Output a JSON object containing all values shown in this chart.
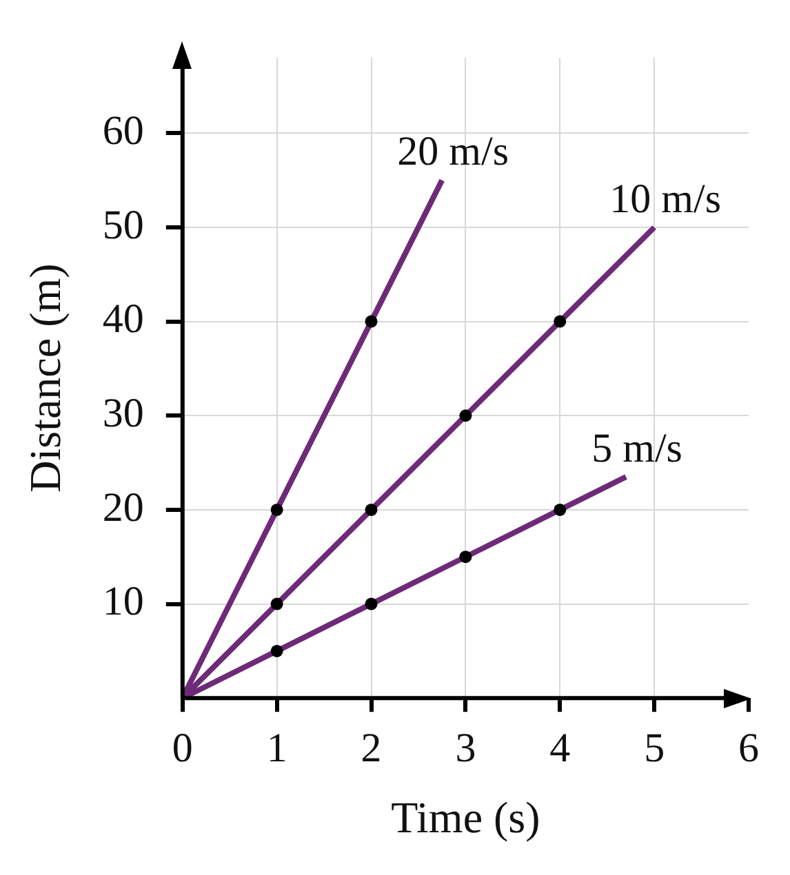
{
  "chart_data": {
    "type": "line",
    "xlabel": "Time (s)",
    "ylabel": "Distance (m)",
    "xlim": [
      0,
      6
    ],
    "ylim": [
      0,
      68
    ],
    "xticks": [
      0,
      1,
      2,
      3,
      4,
      5,
      6
    ],
    "yticks": [
      10,
      20,
      30,
      40,
      50,
      60
    ],
    "grid": true,
    "legend": false,
    "marker": "circle",
    "line_style": "solid",
    "series": [
      {
        "name": "20 m/s",
        "color": "#6e2a78",
        "x": [
          0,
          1,
          2,
          2.75
        ],
        "values": [
          0,
          20,
          40,
          55
        ]
      },
      {
        "name": "10 m/s",
        "color": "#6e2a78",
        "x": [
          0,
          1,
          2,
          3,
          4,
          5
        ],
        "values": [
          0,
          10,
          20,
          30,
          40,
          50
        ]
      },
      {
        "name": "5 m/s",
        "color": "#6e2a78",
        "x": [
          0,
          1,
          2,
          3,
          4,
          4.7
        ],
        "values": [
          0,
          5,
          10,
          15,
          20,
          23.5
        ]
      }
    ]
  }
}
